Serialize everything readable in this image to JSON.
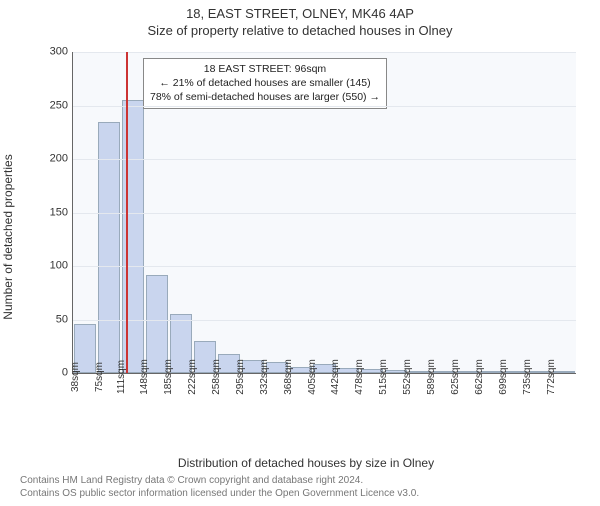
{
  "title_main": "18, EAST STREET, OLNEY, MK46 4AP",
  "title_sub": "Size of property relative to detached houses in Olney",
  "y_label": "Number of detached properties",
  "x_label": "Distribution of detached houses by size in Olney",
  "footer_line1": "Contains HM Land Registry data © Crown copyright and database right 2024.",
  "footer_line2": "Contains OS public sector information licensed under the Open Government Licence v3.0.",
  "chart": {
    "type": "histogram",
    "ymax": 300,
    "ytick_step": 50,
    "yticks": [
      0,
      50,
      100,
      150,
      200,
      250,
      300
    ],
    "bar_color": "#c9d5ee",
    "bar_border_color": "#99aabb",
    "background_color": "#f7f9fc",
    "grid_color": "#e4e8ee",
    "axis_color": "#666666",
    "marker": {
      "position_pct": 10.5,
      "color": "#cc3333",
      "label1": "18 EAST STREET: 96sqm",
      "label2": "← 21% of detached houses are smaller (145)",
      "label3": "78% of semi-detached houses are larger (550) →"
    },
    "bins": [
      {
        "label": "38sqm",
        "value": 46
      },
      {
        "label": "75sqm",
        "value": 235
      },
      {
        "label": "111sqm",
        "value": 255
      },
      {
        "label": "148sqm",
        "value": 92
      },
      {
        "label": "185sqm",
        "value": 55
      },
      {
        "label": "222sqm",
        "value": 30
      },
      {
        "label": "258sqm",
        "value": 18
      },
      {
        "label": "295sqm",
        "value": 12
      },
      {
        "label": "332sqm",
        "value": 10
      },
      {
        "label": "368sqm",
        "value": 6
      },
      {
        "label": "405sqm",
        "value": 8
      },
      {
        "label": "442sqm",
        "value": 5
      },
      {
        "label": "478sqm",
        "value": 4
      },
      {
        "label": "515sqm",
        "value": 3
      },
      {
        "label": "552sqm",
        "value": 2
      },
      {
        "label": "589sqm",
        "value": 0
      },
      {
        "label": "625sqm",
        "value": 1
      },
      {
        "label": "662sqm",
        "value": 0
      },
      {
        "label": "699sqm",
        "value": 0
      },
      {
        "label": "735sqm",
        "value": 0
      },
      {
        "label": "772sqm",
        "value": 1
      }
    ]
  }
}
